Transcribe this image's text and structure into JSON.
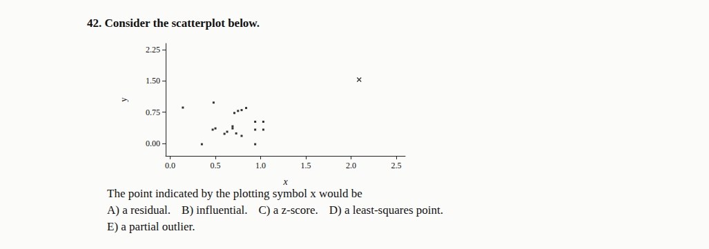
{
  "question": {
    "heading": "42. Consider the scatterplot below.",
    "stem": "The point indicated by the plotting symbol x would be",
    "choices": [
      "A) a residual.",
      "B) influential.",
      "C) a z-score.",
      "D) a least-squares point.",
      "E) a partial outlier."
    ]
  },
  "chart_data": {
    "type": "scatter",
    "x_label": "x",
    "y_label": "y",
    "xlim": [
      -0.05,
      2.6
    ],
    "ylim": [
      -0.3,
      2.4
    ],
    "xticks": [
      {
        "value": 0,
        "label": "0.0"
      },
      {
        "value": 0.5,
        "label": "0.5"
      },
      {
        "value": 1,
        "label": "1.0"
      },
      {
        "value": 1.5,
        "label": "1.5"
      },
      {
        "value": 2,
        "label": "2.0"
      },
      {
        "value": 2.5,
        "label": "2.5"
      }
    ],
    "yticks": [
      {
        "value": 0,
        "label": "0.00"
      },
      {
        "value": 0.75,
        "label": "0.75"
      },
      {
        "value": 1.5,
        "label": "1.50"
      },
      {
        "value": 2.25,
        "label": "2.25"
      }
    ],
    "grid": false,
    "series": [
      {
        "marker": "square",
        "color": "#000000",
        "x": [
          0.14,
          0.48,
          0.71,
          0.75,
          0.79,
          0.84,
          0.47,
          0.5,
          0.6,
          0.63,
          0.69,
          0.69,
          0.73,
          0.79,
          0.94,
          1.03,
          0.94,
          1.03,
          0.35,
          0.94
        ],
        "values": [
          0.86,
          0.98,
          0.73,
          0.78,
          0.8,
          0.85,
          0.33,
          0.36,
          0.23,
          0.28,
          0.36,
          0.41,
          0.24,
          0.18,
          0.52,
          0.52,
          0.33,
          0.33,
          -0.02,
          -0.02
        ]
      },
      {
        "marker": "x",
        "color": "#000000",
        "x": [
          2.09
        ],
        "values": [
          1.53
        ]
      }
    ]
  }
}
